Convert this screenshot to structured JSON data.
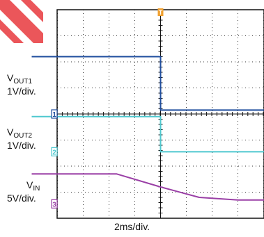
{
  "chart_data": {
    "type": "line",
    "xlabel": "2ms/div.",
    "x_divisions": 10,
    "y_divisions": 8,
    "trigger_marker": "T",
    "channels": [
      {
        "id": "ch1",
        "marker": "1",
        "name": "V",
        "sub": "OUT1",
        "scale": "1V/div.",
        "color": "#1f4e9e"
      },
      {
        "id": "ch2",
        "marker": "2",
        "name": "V",
        "sub": "OUT2",
        "scale": "1V/div.",
        "color": "#4ec8cf"
      },
      {
        "id": "ch3",
        "marker": "3",
        "name": "V",
        "sub": "IN",
        "scale": "5V/div.",
        "color": "#9a3fa6"
      }
    ],
    "traces": {
      "ch1": {
        "t": [
          -5,
          0,
          0,
          5
        ],
        "div": [
          2.2,
          2.2,
          0.15,
          0.15
        ]
      },
      "ch2": {
        "t": [
          -5,
          0,
          0,
          5
        ],
        "div": [
          -0.1,
          -0.1,
          -1.45,
          -1.45
        ]
      },
      "ch3": {
        "t": [
          -5,
          -1.7,
          0,
          1.5,
          3.0,
          5.0
        ],
        "div": [
          -2.3,
          -2.3,
          -2.8,
          -3.2,
          -3.3,
          -3.3
        ]
      }
    },
    "ground_ref_div": {
      "ch1": 0.0,
      "ch2": -1.45,
      "ch3": -3.45
    }
  },
  "colors": {
    "grid": "#333333",
    "axis": "#111111",
    "trigger": "#f0a030",
    "watermark": "#e8383d"
  }
}
